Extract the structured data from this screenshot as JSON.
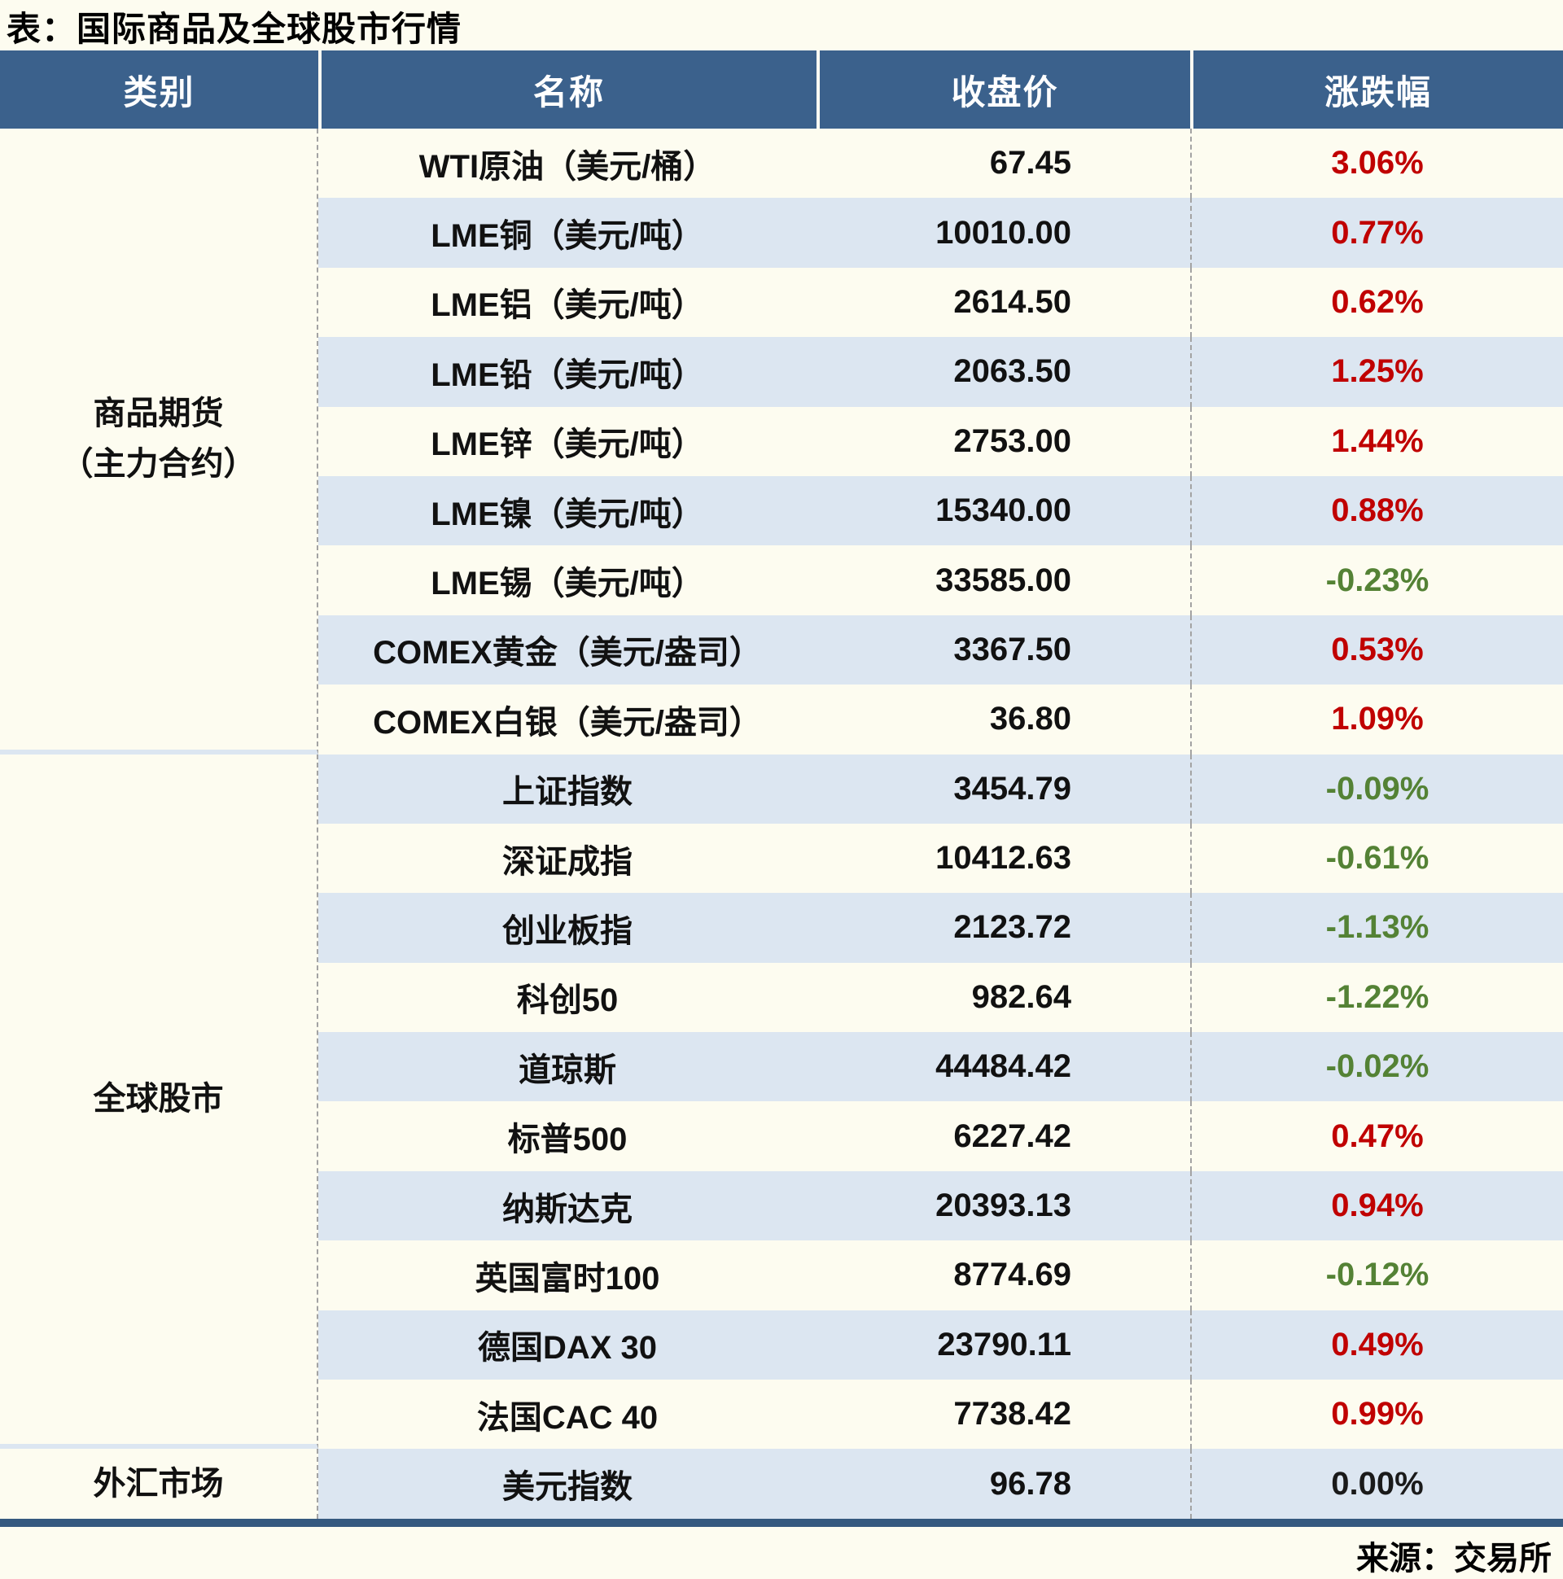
{
  "page": {
    "title": "表：国际商品及全球股市行情",
    "source": "来源：交易所"
  },
  "colors": {
    "header_bg": "#3b618c",
    "stripe_bg": "#dce6f1",
    "bottom_bar": "#35597f",
    "up": "#c00000",
    "down": "#548235",
    "flat": "#1a1a1a"
  },
  "table": {
    "headers": [
      "类别",
      "名称",
      "收盘价",
      "涨跌幅"
    ],
    "sections": [
      {
        "category": "商品期货\n（主力合约）",
        "rows": [
          {
            "name": "WTI原油（美元/桶）",
            "close": "67.45",
            "change": "3.06%",
            "dir": "up"
          },
          {
            "name": "LME铜（美元/吨）",
            "close": "10010.00",
            "change": "0.77%",
            "dir": "up"
          },
          {
            "name": "LME铝（美元/吨）",
            "close": "2614.50",
            "change": "0.62%",
            "dir": "up"
          },
          {
            "name": "LME铅（美元/吨）",
            "close": "2063.50",
            "change": "1.25%",
            "dir": "up"
          },
          {
            "name": "LME锌（美元/吨）",
            "close": "2753.00",
            "change": "1.44%",
            "dir": "up"
          },
          {
            "name": "LME镍（美元/吨）",
            "close": "15340.00",
            "change": "0.88%",
            "dir": "up"
          },
          {
            "name": "LME锡（美元/吨）",
            "close": "33585.00",
            "change": "-0.23%",
            "dir": "down"
          },
          {
            "name": "COMEX黄金（美元/盎司）",
            "close": "3367.50",
            "change": "0.53%",
            "dir": "up"
          },
          {
            "name": "COMEX白银（美元/盎司）",
            "close": "36.80",
            "change": "1.09%",
            "dir": "up"
          }
        ]
      },
      {
        "category": "全球股市",
        "rows": [
          {
            "name": "上证指数",
            "close": "3454.79",
            "change": "-0.09%",
            "dir": "down"
          },
          {
            "name": "深证成指",
            "close": "10412.63",
            "change": "-0.61%",
            "dir": "down"
          },
          {
            "name": "创业板指",
            "close": "2123.72",
            "change": "-1.13%",
            "dir": "down"
          },
          {
            "name": "科创50",
            "close": "982.64",
            "change": "-1.22%",
            "dir": "down"
          },
          {
            "name": "道琼斯",
            "close": "44484.42",
            "change": "-0.02%",
            "dir": "down"
          },
          {
            "name": "标普500",
            "close": "6227.42",
            "change": "0.47%",
            "dir": "up"
          },
          {
            "name": "纳斯达克",
            "close": "20393.13",
            "change": "0.94%",
            "dir": "up"
          },
          {
            "name": "英国富时100",
            "close": "8774.69",
            "change": "-0.12%",
            "dir": "down"
          },
          {
            "name": "德国DAX 30",
            "close": "23790.11",
            "change": "0.49%",
            "dir": "up"
          },
          {
            "name": "法国CAC 40",
            "close": "7738.42",
            "change": "0.99%",
            "dir": "up"
          }
        ]
      },
      {
        "category": "外汇市场",
        "rows": [
          {
            "name": "美元指数",
            "close": "96.78",
            "change": "0.00%",
            "dir": "flat"
          }
        ]
      }
    ]
  },
  "chart_data": {
    "type": "table",
    "title": "表：国际商品及全球股市行情",
    "columns": [
      "类别",
      "名称",
      "收盘价",
      "涨跌幅"
    ],
    "rows": [
      [
        "商品期货（主力合约）",
        "WTI原油（美元/桶）",
        67.45,
        "3.06%"
      ],
      [
        "商品期货（主力合约）",
        "LME铜（美元/吨）",
        10010.0,
        "0.77%"
      ],
      [
        "商品期货（主力合约）",
        "LME铝（美元/吨）",
        2614.5,
        "0.62%"
      ],
      [
        "商品期货（主力合约）",
        "LME铅（美元/吨）",
        2063.5,
        "1.25%"
      ],
      [
        "商品期货（主力合约）",
        "LME锌（美元/吨）",
        2753.0,
        "1.44%"
      ],
      [
        "商品期货（主力合约）",
        "LME镍（美元/吨）",
        15340.0,
        "0.88%"
      ],
      [
        "商品期货（主力合约）",
        "LME锡（美元/吨）",
        33585.0,
        "-0.23%"
      ],
      [
        "商品期货（主力合约）",
        "COMEX黄金（美元/盎司）",
        3367.5,
        "0.53%"
      ],
      [
        "商品期货（主力合约）",
        "COMEX白银（美元/盎司）",
        36.8,
        "1.09%"
      ],
      [
        "全球股市",
        "上证指数",
        3454.79,
        "-0.09%"
      ],
      [
        "全球股市",
        "深证成指",
        10412.63,
        "-0.61%"
      ],
      [
        "全球股市",
        "创业板指",
        2123.72,
        "-1.13%"
      ],
      [
        "全球股市",
        "科创50",
        982.64,
        "-1.22%"
      ],
      [
        "全球股市",
        "道琼斯",
        44484.42,
        "-0.02%"
      ],
      [
        "全球股市",
        "标普500",
        6227.42,
        "0.47%"
      ],
      [
        "全球股市",
        "纳斯达克",
        20393.13,
        "0.94%"
      ],
      [
        "全球股市",
        "英国富时100",
        8774.69,
        "-0.12%"
      ],
      [
        "全球股市",
        "德国DAX 30",
        23790.11,
        "0.49%"
      ],
      [
        "全球股市",
        "法国CAC 40",
        7738.42,
        "0.99%"
      ],
      [
        "外汇市场",
        "美元指数",
        96.78,
        "0.00%"
      ]
    ],
    "notes": "涨跌幅颜色：上涨红色#c00000，下跌绿色#548235，持平黑色；来源：交易所"
  }
}
